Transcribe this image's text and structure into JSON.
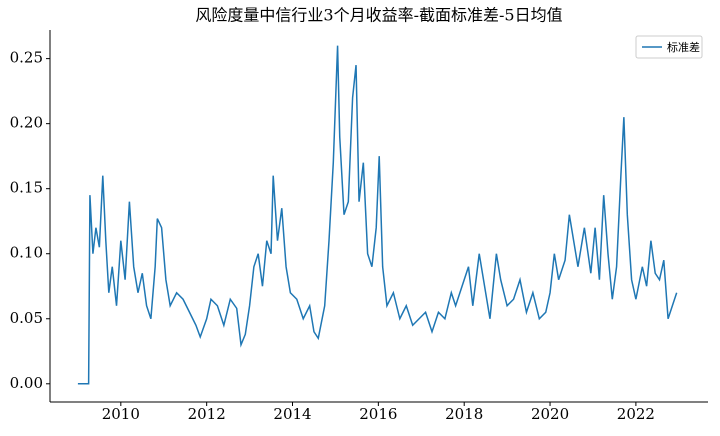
{
  "chart_data": {
    "type": "line",
    "title": "风险度量中信行业3个月收益率-截面标准差-5日均值",
    "x": [
      2009.0,
      2009.2,
      2009.25,
      2009.28,
      2009.35,
      2009.42,
      2009.5,
      2009.58,
      2009.65,
      2009.72,
      2009.8,
      2009.9,
      2010.0,
      2010.1,
      2010.2,
      2010.3,
      2010.4,
      2010.5,
      2010.6,
      2010.7,
      2010.8,
      2010.85,
      2010.95,
      2011.05,
      2011.15,
      2011.3,
      2011.45,
      2011.6,
      2011.75,
      2011.85,
      2012.0,
      2012.1,
      2012.25,
      2012.4,
      2012.55,
      2012.7,
      2012.8,
      2012.9,
      2013.0,
      2013.1,
      2013.2,
      2013.3,
      2013.4,
      2013.5,
      2013.55,
      2013.65,
      2013.75,
      2013.85,
      2013.95,
      2014.1,
      2014.25,
      2014.4,
      2014.5,
      2014.6,
      2014.75,
      2014.85,
      2014.95,
      2015.05,
      2015.1,
      2015.2,
      2015.3,
      2015.4,
      2015.48,
      2015.55,
      2015.65,
      2015.75,
      2015.85,
      2015.95,
      2016.02,
      2016.1,
      2016.2,
      2016.35,
      2016.5,
      2016.65,
      2016.8,
      2016.95,
      2017.1,
      2017.25,
      2017.4,
      2017.55,
      2017.7,
      2017.8,
      2017.95,
      2018.1,
      2018.2,
      2018.35,
      2018.5,
      2018.6,
      2018.75,
      2018.85,
      2019.0,
      2019.15,
      2019.3,
      2019.45,
      2019.6,
      2019.75,
      2019.9,
      2020.0,
      2020.1,
      2020.2,
      2020.35,
      2020.45,
      2020.55,
      2020.65,
      2020.8,
      2020.95,
      2021.05,
      2021.15,
      2021.25,
      2021.35,
      2021.45,
      2021.55,
      2021.65,
      2021.72,
      2021.8,
      2021.9,
      2022.0,
      2022.15,
      2022.25,
      2022.35,
      2022.45,
      2022.55,
      2022.65,
      2022.75,
      2022.85,
      2022.95
    ],
    "series": [
      {
        "name": "标准差",
        "color": "#1f77b4",
        "values": [
          0,
          0,
          0,
          0.145,
          0.1,
          0.12,
          0.105,
          0.16,
          0.11,
          0.07,
          0.09,
          0.06,
          0.11,
          0.08,
          0.14,
          0.09,
          0.07,
          0.085,
          0.06,
          0.05,
          0.09,
          0.127,
          0.12,
          0.08,
          0.06,
          0.07,
          0.065,
          0.055,
          0.045,
          0.036,
          0.05,
          0.065,
          0.06,
          0.045,
          0.065,
          0.058,
          0.03,
          0.038,
          0.06,
          0.09,
          0.1,
          0.075,
          0.11,
          0.1,
          0.16,
          0.11,
          0.135,
          0.09,
          0.07,
          0.065,
          0.05,
          0.06,
          0.04,
          0.035,
          0.06,
          0.11,
          0.17,
          0.26,
          0.19,
          0.13,
          0.14,
          0.22,
          0.245,
          0.14,
          0.17,
          0.1,
          0.09,
          0.12,
          0.175,
          0.09,
          0.06,
          0.07,
          0.05,
          0.06,
          0.045,
          0.05,
          0.055,
          0.04,
          0.055,
          0.05,
          0.07,
          0.06,
          0.075,
          0.09,
          0.06,
          0.1,
          0.07,
          0.05,
          0.1,
          0.08,
          0.06,
          0.065,
          0.08,
          0.055,
          0.07,
          0.05,
          0.055,
          0.07,
          0.1,
          0.08,
          0.095,
          0.13,
          0.11,
          0.09,
          0.12,
          0.085,
          0.12,
          0.08,
          0.145,
          0.1,
          0.065,
          0.09,
          0.16,
          0.205,
          0.13,
          0.08,
          0.065,
          0.09,
          0.075,
          0.11,
          0.085,
          0.08,
          0.095,
          0.05,
          0.06,
          0.07
        ]
      }
    ],
    "xlim": [
      2008.35,
      2023.68
    ],
    "xticks": [
      2010,
      2012,
      2014,
      2016,
      2018,
      2020,
      2022
    ],
    "ylim": [
      -0.014,
      0.272
    ],
    "yticks": [
      {
        "value": 0,
        "label": "0.00"
      },
      {
        "value": 0.05,
        "label": "0.05"
      },
      {
        "value": 0.1,
        "label": "0.10"
      },
      {
        "value": 0.15,
        "label": "0.15"
      },
      {
        "value": 0.2,
        "label": "0.20"
      },
      {
        "value": 0.25,
        "label": "0.25"
      }
    ],
    "legend": "upper right"
  }
}
